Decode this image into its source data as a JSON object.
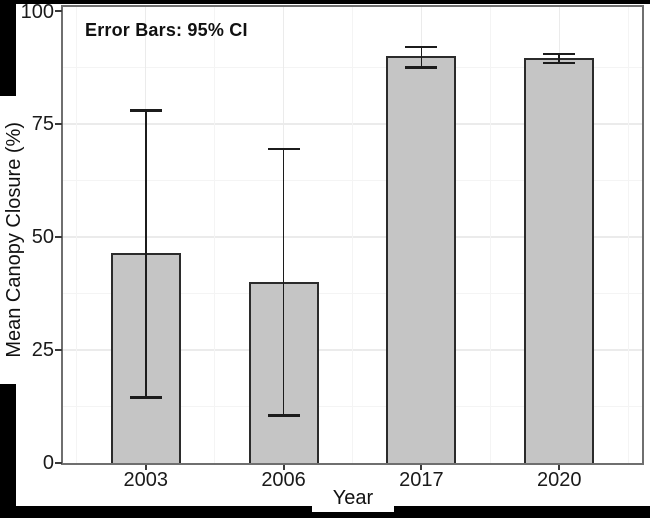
{
  "figure": {
    "frame_color": "#000000",
    "background": "#ffffff"
  },
  "chart_data": {
    "type": "bar",
    "title": "",
    "annotation": "Error Bars: 95% CI",
    "xlabel": "Year",
    "ylabel": "Mean Canopy Closure (%)",
    "categories": [
      "2003",
      "2006",
      "2017",
      "2020"
    ],
    "series": [
      {
        "name": "Mean Canopy Closure (%)",
        "values": [
          46.5,
          40,
          90,
          89.5
        ]
      }
    ],
    "error_bars": {
      "label": "95% CI",
      "low": [
        14.5,
        10.5,
        87.5,
        88.5
      ],
      "high": [
        78,
        69.5,
        92,
        90.5
      ]
    },
    "yticks": [
      0,
      25,
      50,
      75,
      100
    ],
    "ylim": [
      0,
      100
    ],
    "grid": "on",
    "legend": "none",
    "bar_fill": "#c5c5c5",
    "bar_outline": "#2b2b2b",
    "error_bar_color": "#1c1c1c",
    "grid_major_color": "#ebebeb",
    "grid_minor_color": "#f4f4f4",
    "panel_border_color": "#6f6f6f",
    "tick_mark_color": "#3a3a3a"
  }
}
